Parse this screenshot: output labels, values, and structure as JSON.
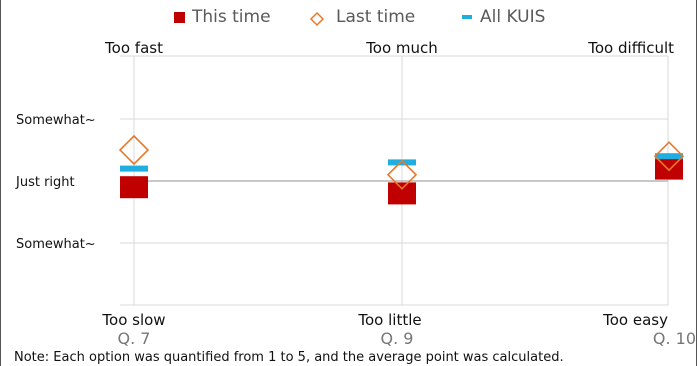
{
  "chart_data": {
    "type": "scatter",
    "categories": [
      "Q. 7",
      "Q. 9",
      "Q. 10"
    ],
    "top_labels": [
      "Too fast",
      "Too much",
      "Too difficult"
    ],
    "bottom_labels": [
      "Too slow",
      "Too little",
      "Too easy"
    ],
    "y_tick_labels": [
      "Somewhat~",
      "Just right",
      "Somewhat~"
    ],
    "y_tick_values": [
      4,
      3,
      2
    ],
    "ylim": [
      1,
      5
    ],
    "grid": true,
    "legend_position": "top",
    "series": [
      {
        "name": "This time",
        "marker": "filled-square",
        "color": "#c00000",
        "values": [
          2.9,
          2.8,
          3.2
        ]
      },
      {
        "name": "Last time",
        "marker": "open-diamond",
        "color": "#e8782a",
        "values": [
          3.5,
          3.1,
          3.4
        ]
      },
      {
        "name": "All KUIS",
        "marker": "dash",
        "color": "#1eaee0",
        "values": [
          3.2,
          3.3,
          3.4
        ]
      }
    ]
  },
  "note": "Note:   Each option was quantified from 1 to 5, and the average point was calculated."
}
